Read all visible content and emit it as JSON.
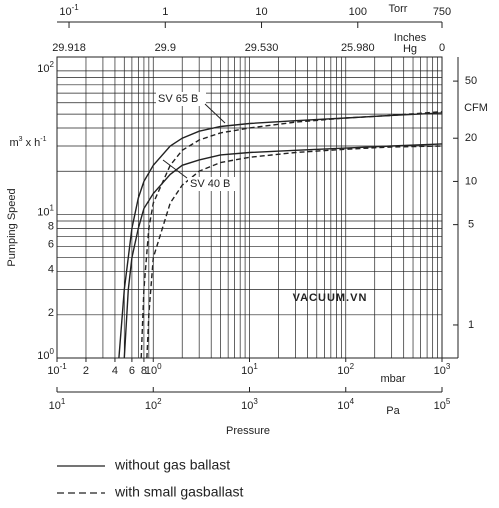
{
  "chart_data": {
    "type": "line",
    "xlim": [
      0.1,
      1000
    ],
    "ylim": [
      1,
      125
    ],
    "log_x": true,
    "log_y": true,
    "grid": true,
    "xticks": [
      {
        "value": 0.1,
        "label": "10",
        "sup": "-1"
      },
      {
        "value": 0.2,
        "label": "2"
      },
      {
        "value": 0.4,
        "label": "4"
      },
      {
        "value": 0.6,
        "label": "6"
      },
      {
        "value": 0.8,
        "label": "8"
      },
      {
        "value": 1,
        "label": "10",
        "sup": "0"
      },
      {
        "value": 10,
        "label": "10",
        "sup": "1"
      },
      {
        "value": 100,
        "label": "10",
        "sup": "2"
      },
      {
        "value": 1000,
        "label": "10",
        "sup": "3"
      }
    ],
    "xminor": [
      0.3,
      0.5,
      0.7,
      0.9,
      2,
      3,
      4,
      5,
      6,
      7,
      8,
      9,
      20,
      30,
      40,
      50,
      60,
      70,
      80,
      90,
      200,
      300,
      400,
      500,
      600,
      700,
      800,
      900
    ],
    "xlabel_unit": "mbar",
    "yticks": [
      {
        "value": 1,
        "label": "10",
        "sup": "0"
      },
      {
        "value": 2,
        "label": "2"
      },
      {
        "value": 4,
        "label": "4"
      },
      {
        "value": 6,
        "label": "6"
      },
      {
        "value": 8,
        "label": "8"
      },
      {
        "value": 10,
        "label": "10",
        "sup": "1"
      },
      {
        "value": 100,
        "label": "10",
        "sup": "2"
      }
    ],
    "yminor": [
      3,
      5,
      7,
      9,
      20,
      30,
      40,
      50,
      60,
      70,
      80,
      90
    ],
    "ylabel": "Pumping Speed",
    "ylabel_unit": {
      "label": "m",
      "sup": "3",
      "mid": " x h",
      "sup2": "-1"
    },
    "y2lim": [
      0.5886,
      73.6
    ],
    "y2ticks": [
      1,
      5,
      10,
      20,
      50
    ],
    "y2label": "CFM",
    "top_axis": {
      "lim": [
        0.075,
        750
      ],
      "label": "Torr",
      "label2": [
        "Inches",
        "Hg"
      ],
      "ticks": [
        {
          "value": 0.1,
          "label": "10",
          "sup": "-1",
          "inhg": "29.918"
        },
        {
          "value": 1,
          "label": "1",
          "inhg": "29.9"
        },
        {
          "value": 10,
          "label": "10",
          "inhg": "29.530"
        },
        {
          "value": 100,
          "label": "100",
          "inhg": "25.980"
        },
        {
          "value": 750,
          "label": "750",
          "inhg": "0"
        }
      ]
    },
    "pa_axis": {
      "lim": [
        10,
        100000
      ],
      "label": "Pa",
      "ticks": [
        {
          "value": 10,
          "label": "10",
          "sup": "1"
        },
        {
          "value": 100,
          "label": "10",
          "sup": "2"
        },
        {
          "value": 1000,
          "label": "10",
          "sup": "3"
        },
        {
          "value": 10000,
          "label": "10",
          "sup": "4"
        },
        {
          "value": 100000,
          "label": "10",
          "sup": "5"
        }
      ]
    },
    "xlabel": "Pressure",
    "color": "#222222",
    "series": [
      {
        "dash": false,
        "x": [
          0.44,
          0.5,
          0.6,
          0.7,
          0.8,
          1,
          1.5,
          2,
          3,
          5,
          10,
          30,
          100,
          300,
          1000
        ],
        "values": [
          1,
          3,
          8,
          13,
          17,
          22,
          30,
          34,
          38,
          41,
          43,
          45,
          47,
          49,
          51
        ]
      },
      {
        "dash": true,
        "x": [
          0.75,
          0.8,
          0.9,
          1,
          1.5,
          2,
          3,
          5,
          10,
          30,
          100,
          300,
          1000
        ],
        "values": [
          1,
          3,
          8,
          12,
          22,
          28,
          33,
          37,
          40,
          44,
          47,
          49,
          52
        ]
      },
      {
        "dash": false,
        "x": [
          0.5,
          0.55,
          0.6,
          0.7,
          0.8,
          1,
          1.5,
          2,
          3,
          5,
          10,
          30,
          100,
          300,
          1000
        ],
        "values": [
          1,
          3,
          5,
          8,
          11,
          14,
          19,
          22,
          24,
          26,
          27,
          28,
          29,
          30,
          31
        ]
      },
      {
        "dash": true,
        "x": [
          0.86,
          0.9,
          1,
          1.5,
          2,
          3,
          5,
          10,
          30,
          100,
          300,
          1000
        ],
        "values": [
          1,
          2,
          5,
          12,
          16,
          20,
          23,
          25,
          27,
          28.5,
          29.5,
          30
        ]
      }
    ],
    "annotations": [
      "SV 65 B",
      "SV 40 B"
    ],
    "legend": [
      {
        "label": "without gas ballast",
        "dash": false
      },
      {
        "label": "with small gasballast",
        "dash": true
      }
    ],
    "watermark": "VACUUM.VN"
  }
}
